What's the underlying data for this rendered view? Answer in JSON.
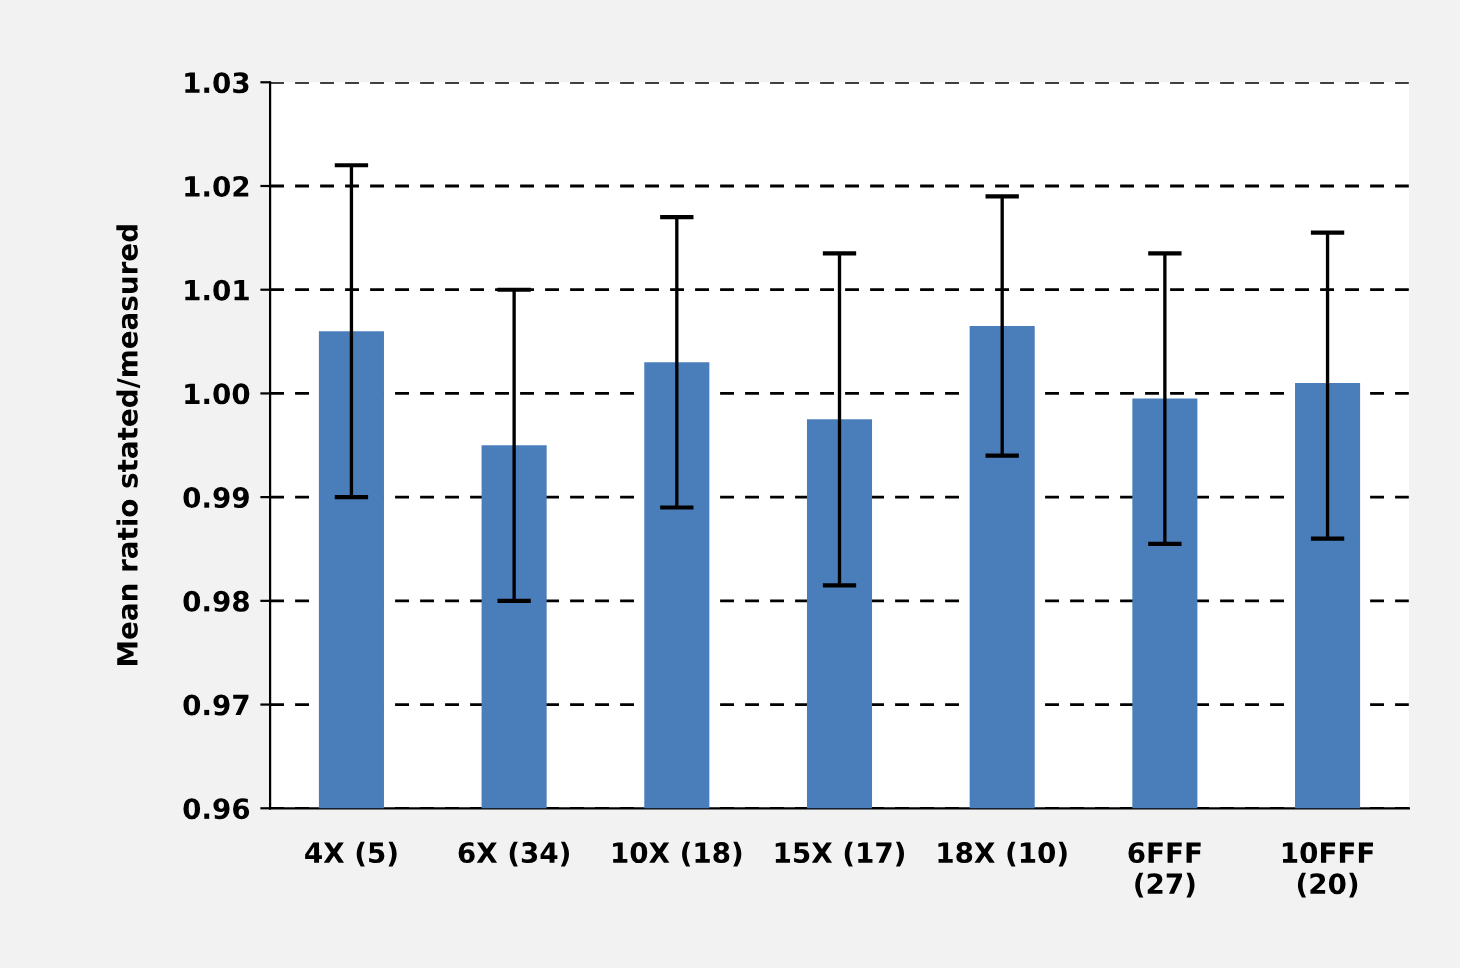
{
  "chart_data": {
    "type": "bar",
    "ylabel": "Mean ratio stated/measured",
    "categories": [
      "4X (5)",
      "6X (34)",
      "10X (18)",
      "15X (17)",
      "18X (10)",
      "6FFF\n(27)",
      "10FFF\n(20)"
    ],
    "values": [
      1.006,
      0.995,
      1.003,
      0.9975,
      1.0065,
      0.9995,
      1.001
    ],
    "errors": [
      [
        0.99,
        1.022
      ],
      [
        0.98,
        1.01
      ],
      [
        0.989,
        1.017
      ],
      [
        0.9815,
        1.0135
      ],
      [
        0.994,
        1.019
      ],
      [
        0.9855,
        1.0135
      ],
      [
        0.986,
        1.0155
      ]
    ],
    "color": "#4a7ebb",
    "ylim": [
      0.96,
      1.03
    ],
    "yticks": [
      {
        "value": 0.96,
        "label": "0.96"
      },
      {
        "value": 0.97,
        "label": "0.97"
      },
      {
        "value": 0.98,
        "label": "0.98"
      },
      {
        "value": 0.99,
        "label": "0.99"
      },
      {
        "value": 1.0,
        "label": "1.00"
      },
      {
        "value": 1.01,
        "label": "1.01"
      },
      {
        "value": 1.02,
        "label": "1.02"
      },
      {
        "value": 1.03,
        "label": "1.03"
      }
    ],
    "grid": "y",
    "legend": false
  }
}
